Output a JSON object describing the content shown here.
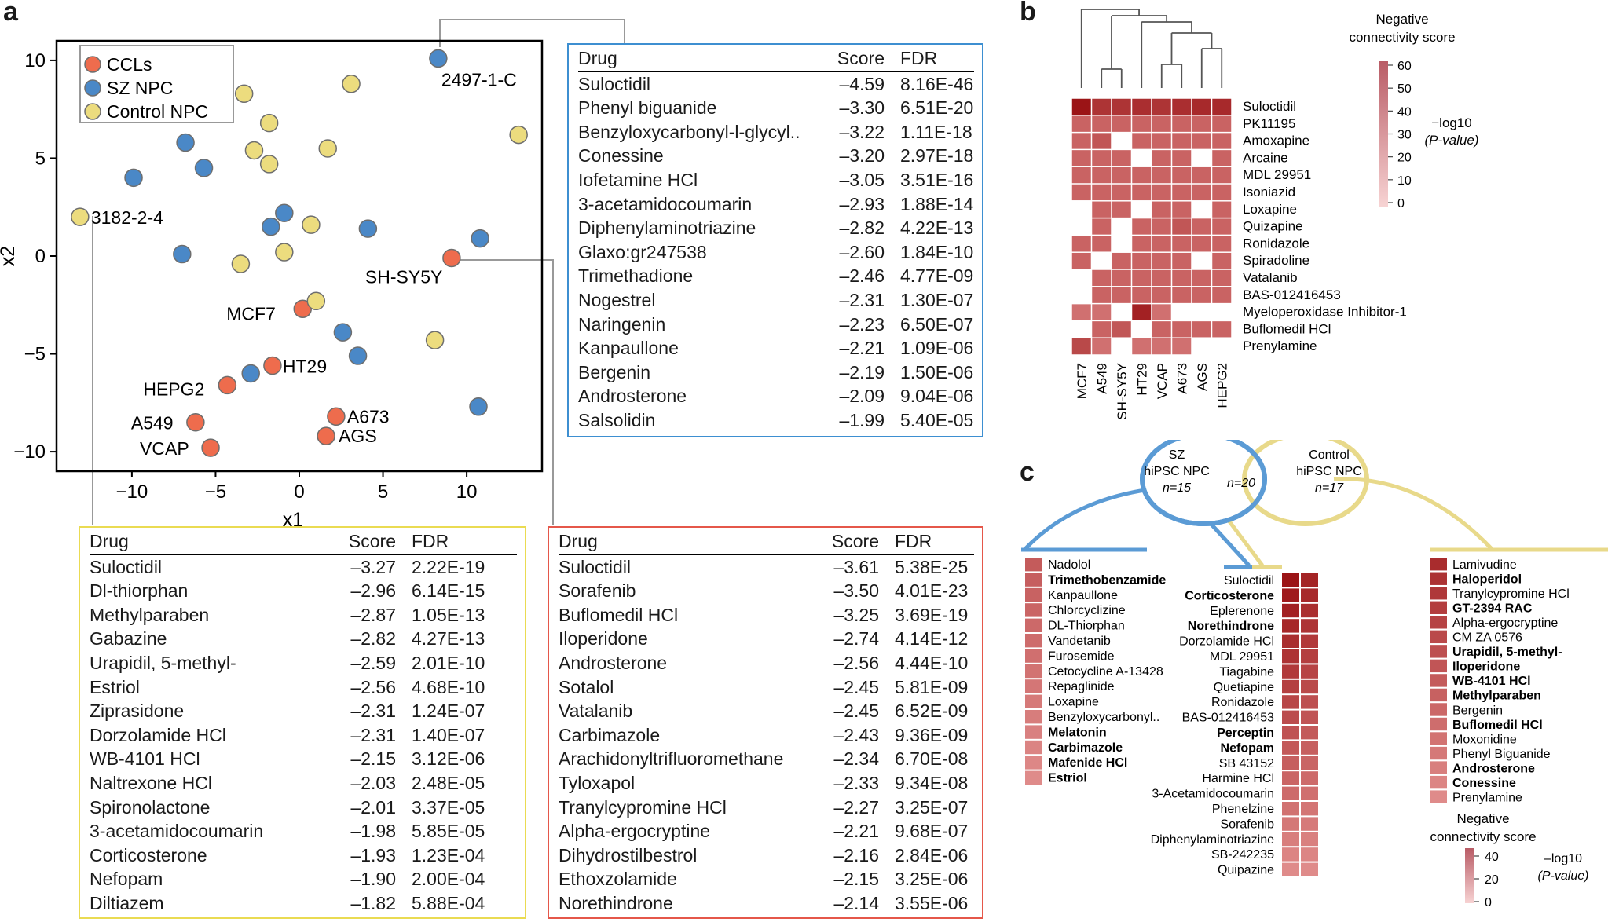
{
  "panels": {
    "a": "a",
    "b": "b",
    "c": "c"
  },
  "colors": {
    "ccl": "#ee6c4d",
    "sz": "#4a88c7",
    "control": "#ecdc7e",
    "blue_box": "#3d8fd1",
    "yellow_box": "#eadb52",
    "red_box": "#e5574a"
  },
  "chart_data": [
    {
      "type": "scatter",
      "xlabel": "x1",
      "ylabel": "x2",
      "xlim": [
        -14.5,
        14.5
      ],
      "ylim": [
        -11,
        11
      ],
      "xticks": [
        "−10",
        "−5",
        "0",
        "5",
        "10"
      ],
      "yticks": [
        "10",
        "5",
        "0",
        "−5",
        "−10"
      ],
      "legend": {
        "position": "top-left",
        "entries": [
          {
            "label": "CCLs",
            "color": "#ee6c4d"
          },
          {
            "label": "SZ NPC",
            "color": "#4a88c7"
          },
          {
            "label": "Control NPC",
            "color": "#ecdc7e"
          }
        ]
      },
      "series": [
        {
          "name": "CCLs",
          "points": [
            {
              "x": 9.1,
              "y": -0.1,
              "label": "SH-SY5Y"
            },
            {
              "x": 0.2,
              "y": -2.7,
              "label": "MCF7"
            },
            {
              "x": -1.6,
              "y": -5.6,
              "label": "HT29"
            },
            {
              "x": -4.3,
              "y": -6.6,
              "label": "HEPG2"
            },
            {
              "x": -6.2,
              "y": -8.5,
              "label": "A549"
            },
            {
              "x": -5.3,
              "y": -9.8,
              "label": "VCAP"
            },
            {
              "x": 2.2,
              "y": -8.2,
              "label": "A673"
            },
            {
              "x": 1.6,
              "y": -9.2,
              "label": "AGS"
            }
          ]
        },
        {
          "name": "SZ NPC",
          "points": [
            {
              "x": 8.3,
              "y": 10.1,
              "label": "2497-1-C"
            },
            {
              "x": -6.8,
              "y": 5.8
            },
            {
              "x": -5.7,
              "y": 4.5
            },
            {
              "x": -9.9,
              "y": 4.0
            },
            {
              "x": -1.7,
              "y": 1.5
            },
            {
              "x": -0.9,
              "y": 2.2
            },
            {
              "x": 4.1,
              "y": 1.4
            },
            {
              "x": -7.0,
              "y": 0.1
            },
            {
              "x": 10.8,
              "y": 0.9
            },
            {
              "x": 2.6,
              "y": -3.9
            },
            {
              "x": 3.5,
              "y": -5.1
            },
            {
              "x": -2.9,
              "y": -6.0
            },
            {
              "x": 10.7,
              "y": -7.7
            }
          ]
        },
        {
          "name": "Control NPC",
          "points": [
            {
              "x": -13.1,
              "y": 2.0,
              "label": "3182-2-4"
            },
            {
              "x": -3.3,
              "y": 8.3
            },
            {
              "x": -1.8,
              "y": 6.8
            },
            {
              "x": -2.7,
              "y": 5.4
            },
            {
              "x": -1.8,
              "y": 4.7
            },
            {
              "x": 1.7,
              "y": 5.5
            },
            {
              "x": 3.1,
              "y": 8.8
            },
            {
              "x": 13.1,
              "y": 6.2
            },
            {
              "x": 0.7,
              "y": 1.6
            },
            {
              "x": -0.9,
              "y": 0.2
            },
            {
              "x": -3.5,
              "y": -0.4
            },
            {
              "x": 1.0,
              "y": -2.3
            },
            {
              "x": 8.1,
              "y": -4.3
            }
          ]
        }
      ]
    },
    {
      "type": "heatmap",
      "title": "Negative connectivity score",
      "colorbar": {
        "label": "−log10 (P-value)",
        "ticks": [
          "60",
          "50",
          "40",
          "30",
          "20",
          "10",
          "0"
        ]
      },
      "columns": [
        "MCF7",
        "A549",
        "SH-SY5Y",
        "HT29",
        "VCAP",
        "A673",
        "AGS",
        "HEPG2"
      ],
      "rows": [
        "Suloctidil",
        "PK11195",
        "Amoxapine",
        "Arcaine",
        "MDL 29951",
        "Isoniazid",
        "Loxapine",
        "Quizapine",
        "Ronidazole",
        "Spiradoline",
        "Vatalanib",
        "BAS-012416453",
        "Myeloperoxidase Inhibitor-1",
        "Buflomedil HCl",
        "Prenylamine"
      ],
      "values": [
        [
          60,
          48,
          48,
          50,
          48,
          50,
          52,
          52
        ],
        [
          30,
          30,
          30,
          30,
          30,
          30,
          30,
          30
        ],
        [
          30,
          35,
          0,
          30,
          30,
          30,
          30,
          30
        ],
        [
          30,
          30,
          30,
          0,
          30,
          30,
          0,
          30
        ],
        [
          30,
          30,
          30,
          30,
          30,
          30,
          30,
          30
        ],
        [
          30,
          30,
          30,
          30,
          30,
          30,
          30,
          30
        ],
        [
          0,
          30,
          30,
          0,
          30,
          30,
          0,
          30
        ],
        [
          0,
          30,
          0,
          30,
          30,
          35,
          30,
          30
        ],
        [
          30,
          30,
          0,
          30,
          30,
          30,
          30,
          30
        ],
        [
          30,
          0,
          30,
          30,
          30,
          30,
          0,
          30
        ],
        [
          0,
          30,
          30,
          30,
          30,
          30,
          30,
          30
        ],
        [
          0,
          30,
          30,
          30,
          30,
          30,
          30,
          30
        ],
        [
          25,
          25,
          0,
          55,
          25,
          0,
          0,
          0
        ],
        [
          0,
          30,
          35,
          0,
          30,
          30,
          30,
          30
        ],
        [
          40,
          25,
          0,
          25,
          25,
          25,
          0,
          0
        ]
      ],
      "dendrogram": "8 leaves, hierarchical clustering of cell lines"
    }
  ],
  "tables": {
    "sz": {
      "headers": [
        "Drug",
        "Score",
        "FDR"
      ],
      "rows": [
        [
          "Suloctidil",
          "–4.59",
          "8.16E-46"
        ],
        [
          "Phenyl biguanide",
          "–3.30",
          "6.51E-20"
        ],
        [
          "Benzyloxycarbonyl-l-glycyl..",
          "–3.22",
          "1.11E-18"
        ],
        [
          "Conessine",
          "–3.20",
          "2.97E-18"
        ],
        [
          "Iofetamine HCl",
          "–3.05",
          "3.51E-16"
        ],
        [
          "3-acetamidocoumarin",
          "–2.93",
          "1.88E-14"
        ],
        [
          "Diphenylaminotriazine",
          "–2.82",
          "4.22E-13"
        ],
        [
          "Glaxo:gr247538",
          "–2.60",
          "1.84E-10"
        ],
        [
          "Trimethadione",
          "–2.46",
          "4.77E-09"
        ],
        [
          "Nogestrel",
          "–2.31",
          "1.30E-07"
        ],
        [
          "Naringenin",
          "–2.23",
          "6.50E-07"
        ],
        [
          "Kanpaullone",
          "–2.21",
          "1.09E-06"
        ],
        [
          "Bergenin",
          "–2.19",
          "1.50E-06"
        ],
        [
          "Androsterone",
          "–2.09",
          "9.04E-06"
        ],
        [
          "Salsolidin",
          "–1.99",
          "5.40E-05"
        ]
      ]
    },
    "control": {
      "headers": [
        "Drug",
        "Score",
        "FDR"
      ],
      "rows": [
        [
          "Suloctidil",
          "–3.27",
          "2.22E-19"
        ],
        [
          "Dl-thiorphan",
          "–2.96",
          "6.14E-15"
        ],
        [
          "Methylparaben",
          "–2.87",
          "1.05E-13"
        ],
        [
          "Gabazine",
          "–2.82",
          "4.27E-13"
        ],
        [
          "Urapidil, 5-methyl-",
          "–2.59",
          "2.01E-10"
        ],
        [
          "Estriol",
          "–2.56",
          "4.68E-10"
        ],
        [
          "Ziprasidone",
          "–2.31",
          "1.24E-07"
        ],
        [
          "Dorzolamide HCl",
          "–2.31",
          "1.40E-07"
        ],
        [
          "WB-4101 HCl",
          "–2.15",
          "3.12E-06"
        ],
        [
          "Naltrexone HCl",
          "–2.03",
          "2.48E-05"
        ],
        [
          "Spironolactone",
          "–2.01",
          "3.37E-05"
        ],
        [
          "3-acetamidocoumarin",
          "–1.98",
          "5.85E-05"
        ],
        [
          "Corticosterone",
          "–1.93",
          "1.23E-04"
        ],
        [
          "Nefopam",
          "–1.90",
          "2.00E-04"
        ],
        [
          "Diltiazem",
          "–1.82",
          "5.88E-04"
        ]
      ]
    },
    "ccl": {
      "headers": [
        "Drug",
        "Score",
        "FDR"
      ],
      "rows": [
        [
          "Suloctidil",
          "–3.61",
          "5.38E-25"
        ],
        [
          "Sorafenib",
          "–3.50",
          "4.01E-23"
        ],
        [
          "Buflomedil HCl",
          "–3.25",
          "3.69E-19"
        ],
        [
          "Iloperidone",
          "–2.74",
          "4.14E-12"
        ],
        [
          "Androsterone",
          "–2.56",
          "4.44E-10"
        ],
        [
          "Sotalol",
          "–2.45",
          "5.81E-09"
        ],
        [
          "Vatalanib",
          "–2.45",
          "6.52E-09"
        ],
        [
          "Carbimazole",
          "–2.43",
          "9.36E-09"
        ],
        [
          "Arachidonyltrifluoromethane",
          "–2.34",
          "6.70E-08"
        ],
        [
          "Tyloxapol",
          "–2.33",
          "9.34E-08"
        ],
        [
          "Tranylcypromine HCl",
          "–2.27",
          "3.25E-07"
        ],
        [
          "Alpha-ergocryptine",
          "–2.21",
          "9.68E-07"
        ],
        [
          "Dihydrostilbestrol",
          "–2.16",
          "2.84E-06"
        ],
        [
          "Ethoxzolamide",
          "–2.15",
          "3.25E-06"
        ],
        [
          "Norethindrone",
          "–2.14",
          "3.55E-06"
        ]
      ]
    }
  },
  "panel_c": {
    "venn": {
      "sz_label_1": "SZ",
      "sz_label_2": "hiPSC NPC",
      "sz_n": "n=15",
      "ctrl_label_1": "Control",
      "ctrl_label_2": "hiPSC NPC",
      "ctrl_n": "n=17",
      "overlap_n": "n=20"
    },
    "sz_only": [
      {
        "name": "Nadolol",
        "bold": false
      },
      {
        "name": "Trimethobenzamide",
        "bold": true
      },
      {
        "name": "Kanpaullone",
        "bold": false
      },
      {
        "name": "Chlorcyclizine",
        "bold": false
      },
      {
        "name": "DL-Thiorphan",
        "bold": false
      },
      {
        "name": "Vandetanib",
        "bold": false
      },
      {
        "name": "Furosemide",
        "bold": false
      },
      {
        "name": "Cetocycline A-13428",
        "bold": false
      },
      {
        "name": "Repaglinide",
        "bold": false
      },
      {
        "name": "Loxapine",
        "bold": false
      },
      {
        "name": "Benzyloxycarbonyl..",
        "bold": false
      },
      {
        "name": "Melatonin",
        "bold": true
      },
      {
        "name": "Carbimazole",
        "bold": true
      },
      {
        "name": "Mafenide HCl",
        "bold": true
      },
      {
        "name": "Estriol",
        "bold": true
      }
    ],
    "shared": [
      {
        "name": "Suloctidil",
        "bold": false
      },
      {
        "name": "Corticosterone",
        "bold": true
      },
      {
        "name": "Eplerenone",
        "bold": false
      },
      {
        "name": "Norethindrone",
        "bold": true
      },
      {
        "name": "Dorzolamide HCl",
        "bold": false
      },
      {
        "name": "MDL 29951",
        "bold": false
      },
      {
        "name": "Tiagabine",
        "bold": false
      },
      {
        "name": "Quetiapine",
        "bold": false
      },
      {
        "name": "Ronidazole",
        "bold": false
      },
      {
        "name": "BAS-012416453",
        "bold": false
      },
      {
        "name": "Perceptin",
        "bold": true
      },
      {
        "name": "Nefopam",
        "bold": true
      },
      {
        "name": "SB 43152",
        "bold": false
      },
      {
        "name": "Harmine HCl",
        "bold": false
      },
      {
        "name": "3-Acetamidocoumarin",
        "bold": false
      },
      {
        "name": "Phenelzine",
        "bold": false
      },
      {
        "name": "Sorafenib",
        "bold": false
      },
      {
        "name": "Diphenylaminotriazine",
        "bold": false
      },
      {
        "name": "SB-242235",
        "bold": false
      },
      {
        "name": "Quipazine",
        "bold": false
      }
    ],
    "control_only": [
      {
        "name": "Lamivudine",
        "bold": false
      },
      {
        "name": "Haloperidol",
        "bold": true
      },
      {
        "name": "Tranylcypromine HCl",
        "bold": false
      },
      {
        "name": "GT-2394 RAC",
        "bold": true
      },
      {
        "name": "Alpha-ergocryptine",
        "bold": false
      },
      {
        "name": "CM ZA 0576",
        "bold": false
      },
      {
        "name": "Urapidil, 5-methyl-",
        "bold": true
      },
      {
        "name": "Iloperidone",
        "bold": true
      },
      {
        "name": "WB-4101 HCl",
        "bold": true
      },
      {
        "name": "Methylparaben",
        "bold": true
      },
      {
        "name": "Bergenin",
        "bold": false
      },
      {
        "name": "Buflomedil HCl",
        "bold": true
      },
      {
        "name": "Moxonidine",
        "bold": false
      },
      {
        "name": "Phenyl Biguanide",
        "bold": false
      },
      {
        "name": "Androsterone",
        "bold": true
      },
      {
        "name": "Conessine",
        "bold": true
      },
      {
        "name": "Prenylamine",
        "bold": false
      }
    ],
    "colorbar": {
      "title_1": "Negative",
      "title_2": "connectivity score",
      "ticks": [
        "40",
        "20",
        "0"
      ],
      "label_1": "–log10",
      "label_2": "(P-value)"
    }
  }
}
